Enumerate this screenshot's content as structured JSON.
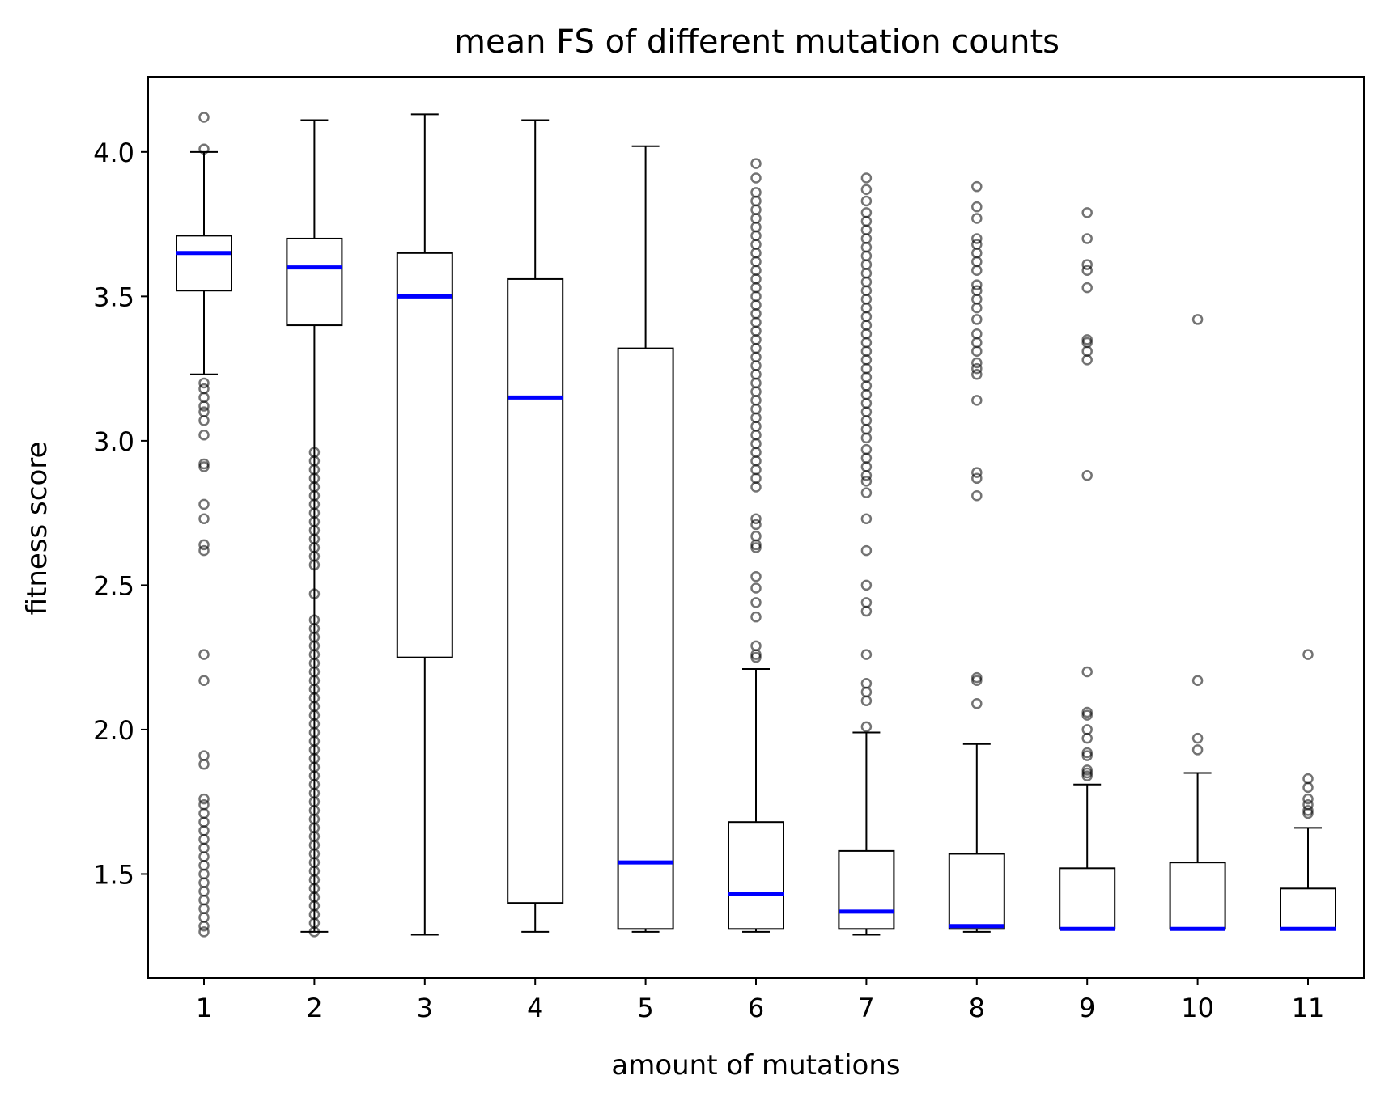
{
  "chart_data": {
    "type": "box",
    "title": "mean FS of different mutation counts",
    "xlabel": "amount of mutations",
    "ylabel": "fitness score",
    "ylim": [
      1.14,
      4.26
    ],
    "yticks": [
      1.5,
      2.0,
      2.5,
      3.0,
      3.5,
      4.0
    ],
    "ytick_labels": [
      "1.5",
      "2.0",
      "2.5",
      "3.0",
      "3.5",
      "4.0"
    ],
    "categories": [
      "1",
      "2",
      "3",
      "4",
      "5",
      "6",
      "7",
      "8",
      "9",
      "10",
      "11"
    ],
    "grid": false,
    "legend": "none",
    "colors": {
      "median": "#0000ff",
      "box": "#000000",
      "outlier": "#555555"
    },
    "boxes": [
      {
        "category": "1",
        "whisker_low": 3.23,
        "q1": 3.52,
        "median": 3.65,
        "q3": 3.71,
        "whisker_high": 4.0,
        "outliers": [
          4.12,
          4.01,
          3.2,
          3.18,
          3.15,
          3.12,
          3.1,
          3.07,
          3.02,
          2.92,
          2.91,
          2.78,
          2.73,
          2.64,
          2.62,
          2.26,
          2.17,
          1.91,
          1.88,
          1.76,
          1.74,
          1.71,
          1.68,
          1.65,
          1.62,
          1.59,
          1.56,
          1.53,
          1.5,
          1.47,
          1.44,
          1.41,
          1.38,
          1.35,
          1.32,
          1.3
        ]
      },
      {
        "category": "2",
        "whisker_low": 1.3,
        "q1": 3.4,
        "median": 3.6,
        "q3": 3.7,
        "whisker_high": 4.11,
        "outliers": [
          2.96,
          2.93,
          2.9,
          2.87,
          2.84,
          2.81,
          2.78,
          2.75,
          2.72,
          2.69,
          2.66,
          2.63,
          2.6,
          2.57,
          2.47,
          2.38,
          2.35,
          2.32,
          2.29,
          2.26,
          2.23,
          2.2,
          2.17,
          2.14,
          2.11,
          2.08,
          2.05,
          2.02,
          1.99,
          1.96,
          1.93,
          1.9,
          1.87,
          1.84,
          1.81,
          1.78,
          1.75,
          1.72,
          1.69,
          1.66,
          1.63,
          1.6,
          1.57,
          1.54,
          1.51,
          1.48,
          1.45,
          1.42,
          1.39,
          1.36,
          1.33,
          1.3
        ]
      },
      {
        "category": "3",
        "whisker_low": 1.29,
        "q1": 2.25,
        "median": 3.5,
        "q3": 3.65,
        "whisker_high": 4.13,
        "outliers": []
      },
      {
        "category": "4",
        "whisker_low": 1.3,
        "q1": 1.4,
        "median": 3.15,
        "q3": 3.56,
        "whisker_high": 4.11,
        "outliers": []
      },
      {
        "category": "5",
        "whisker_low": 1.3,
        "q1": 1.31,
        "median": 1.54,
        "q3": 3.32,
        "whisker_high": 4.02,
        "outliers": []
      },
      {
        "category": "6",
        "whisker_low": 1.3,
        "q1": 1.31,
        "median": 1.43,
        "q3": 1.68,
        "whisker_high": 2.21,
        "outliers": [
          3.96,
          3.91,
          3.86,
          3.83,
          3.8,
          3.77,
          3.74,
          3.71,
          3.68,
          3.65,
          3.62,
          3.59,
          3.56,
          3.53,
          3.5,
          3.47,
          3.44,
          3.41,
          3.38,
          3.35,
          3.32,
          3.29,
          3.26,
          3.23,
          3.2,
          3.17,
          3.14,
          3.11,
          3.08,
          3.05,
          3.02,
          2.99,
          2.96,
          2.93,
          2.9,
          2.87,
          2.84,
          2.73,
          2.71,
          2.67,
          2.64,
          2.63,
          2.53,
          2.49,
          2.44,
          2.39,
          2.29,
          2.26,
          2.25
        ]
      },
      {
        "category": "7",
        "whisker_low": 1.29,
        "q1": 1.31,
        "median": 1.37,
        "q3": 1.58,
        "whisker_high": 1.99,
        "outliers": [
          3.91,
          3.87,
          3.83,
          3.79,
          3.76,
          3.73,
          3.7,
          3.67,
          3.64,
          3.61,
          3.58,
          3.55,
          3.52,
          3.49,
          3.46,
          3.43,
          3.4,
          3.37,
          3.34,
          3.31,
          3.28,
          3.25,
          3.22,
          3.19,
          3.16,
          3.13,
          3.1,
          3.07,
          3.04,
          3.01,
          2.97,
          2.94,
          2.91,
          2.88,
          2.86,
          2.82,
          2.73,
          2.62,
          2.5,
          2.44,
          2.41,
          2.26,
          2.16,
          2.13,
          2.1,
          2.01
        ]
      },
      {
        "category": "8",
        "whisker_low": 1.3,
        "q1": 1.31,
        "median": 1.32,
        "q3": 1.57,
        "whisker_high": 1.95,
        "outliers": [
          3.88,
          3.81,
          3.77,
          3.7,
          3.68,
          3.65,
          3.62,
          3.59,
          3.54,
          3.52,
          3.49,
          3.46,
          3.42,
          3.37,
          3.34,
          3.31,
          3.27,
          3.25,
          3.23,
          3.14,
          2.89,
          2.87,
          2.81,
          2.18,
          2.17,
          2.09
        ]
      },
      {
        "category": "9",
        "whisker_low": 1.31,
        "q1": 1.31,
        "median": 1.31,
        "q3": 1.52,
        "whisker_high": 1.81,
        "outliers": [
          3.79,
          3.7,
          3.61,
          3.59,
          3.53,
          3.35,
          3.34,
          3.31,
          3.28,
          2.88,
          2.2,
          2.06,
          2.05,
          2.0,
          1.97,
          1.92,
          1.91,
          1.86,
          1.85,
          1.84
        ]
      },
      {
        "category": "10",
        "whisker_low": 1.31,
        "q1": 1.31,
        "median": 1.31,
        "q3": 1.54,
        "whisker_high": 1.85,
        "outliers": [
          3.42,
          2.17,
          1.97,
          1.93
        ]
      },
      {
        "category": "11",
        "whisker_low": 1.31,
        "q1": 1.31,
        "median": 1.31,
        "q3": 1.45,
        "whisker_high": 1.66,
        "outliers": [
          2.26,
          1.83,
          1.8,
          1.76,
          1.74,
          1.72,
          1.71
        ]
      }
    ]
  }
}
